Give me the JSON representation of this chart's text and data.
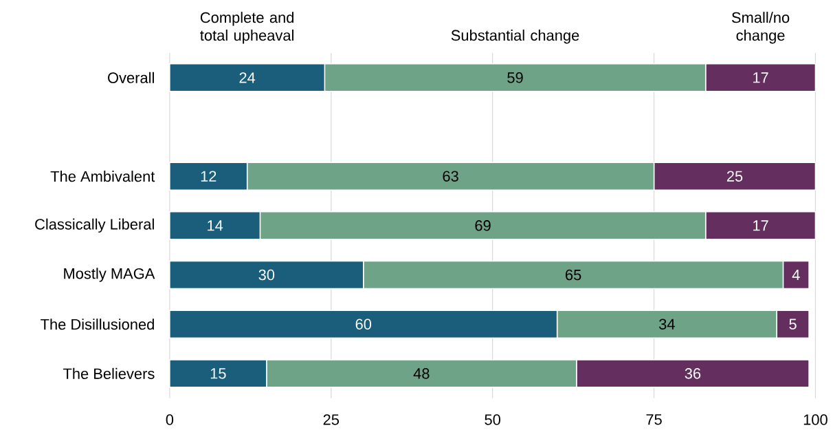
{
  "chart_data": {
    "type": "bar",
    "orientation": "horizontal",
    "stacked": true,
    "data_labels": true,
    "grid": "x",
    "legend": "top",
    "categories": [
      "Overall",
      null,
      "The Ambivalent",
      "Classically Liberal",
      "Mostly MAGA",
      "The Disillusioned",
      "The Believers"
    ],
    "xlim": [
      0,
      100
    ],
    "xticks": [
      0,
      25,
      50,
      75,
      100
    ],
    "series": [
      {
        "name": "Complete and total upheaval",
        "color": "#1b5e7b",
        "values": [
          24,
          null,
          12,
          14,
          30,
          60,
          15
        ]
      },
      {
        "name": "Substantial change",
        "color": "#6fa388",
        "values": [
          59,
          null,
          63,
          69,
          65,
          34,
          48
        ]
      },
      {
        "name": "Small/no change",
        "color": "#642f5f",
        "values": [
          17,
          null,
          25,
          17,
          4,
          5,
          36
        ]
      }
    ]
  }
}
